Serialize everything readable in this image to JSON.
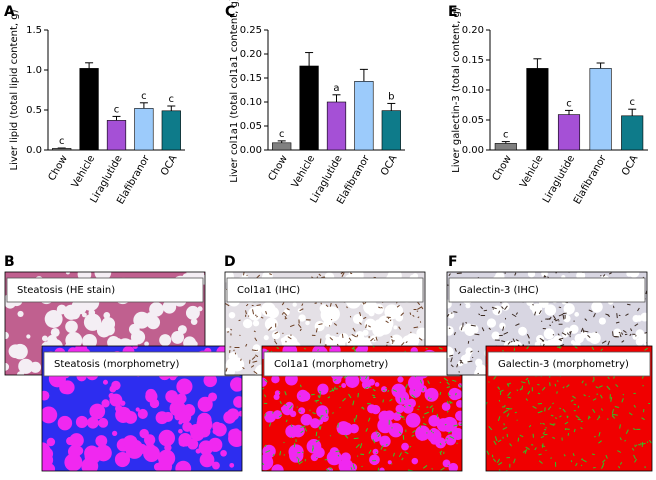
{
  "chart_data": [
    {
      "type": "bar",
      "panel": "A",
      "ylabel": "Liver lipid (total lipid content, g)",
      "categories": [
        "Chow",
        "Vehicle",
        "Liraglutide",
        "Elafibranor",
        "OCA"
      ],
      "values": [
        0.02,
        1.02,
        0.37,
        0.52,
        0.49
      ],
      "errors": [
        0.005,
        0.07,
        0.05,
        0.07,
        0.06
      ],
      "annotations": [
        "c",
        null,
        "c",
        "c",
        "c"
      ],
      "colors": [
        "#808080",
        "#000000",
        "#a550d6",
        "#9ccbfb",
        "#0e7b8a"
      ],
      "ylim": [
        0,
        1.5
      ],
      "yticks": [
        {
          "value": 0,
          "label": "0.0"
        },
        0.5,
        {
          "value": 1,
          "label": "1.0"
        },
        1.5
      ]
    },
    {
      "type": "bar",
      "panel": "C",
      "ylabel": "Liver col1a1 (total col1a1 content, g)",
      "categories": [
        "Chow",
        "Vehicle",
        "Liraglutide",
        "Elafibranor",
        "OCA"
      ],
      "values": [
        0.015,
        0.175,
        0.1,
        0.143,
        0.082
      ],
      "errors": [
        0.004,
        0.028,
        0.015,
        0.025,
        0.015
      ],
      "annotations": [
        "c",
        null,
        "a",
        null,
        "b"
      ],
      "colors": [
        "#808080",
        "#000000",
        "#a550d6",
        "#9ccbfb",
        "#0e7b8a"
      ],
      "ylim": [
        0,
        0.25
      ],
      "yticks": [
        {
          "value": 0,
          "label": "0.00"
        },
        0.05,
        {
          "value": 0.1,
          "label": "0.10"
        },
        0.15,
        {
          "value": 0.2,
          "label": "0.20"
        },
        0.25
      ]
    },
    {
      "type": "bar",
      "panel": "E",
      "ylabel": "Liver galectin-3 (total content, g)",
      "categories": [
        "Chow",
        "Vehicle",
        "Liraglutide",
        "Elafibranor",
        "OCA"
      ],
      "values": [
        0.011,
        0.136,
        0.059,
        0.136,
        0.057
      ],
      "errors": [
        0.003,
        0.016,
        0.007,
        0.009,
        0.011
      ],
      "annotations": [
        "c",
        null,
        "c",
        null,
        "c"
      ],
      "colors": [
        "#808080",
        "#000000",
        "#a550d6",
        "#9ccbfb",
        "#0e7b8a"
      ],
      "ylim": [
        0,
        0.2
      ],
      "yticks": [
        {
          "value": 0,
          "label": "0.00"
        },
        0.05,
        {
          "value": 0.1,
          "label": "0.10"
        },
        0.15,
        {
          "value": 0.2,
          "label": "0.20"
        }
      ]
    }
  ],
  "images": [
    {
      "panel": "B",
      "captions": [
        "Steatosis (HE stain)",
        "Steatosis (morphometry)"
      ]
    },
    {
      "panel": "D",
      "captions": [
        "Col1a1 (IHC)",
        "Col1a1 (morphometry)"
      ]
    },
    {
      "panel": "F",
      "captions": [
        "Galectin-3 (IHC)",
        "Galectin-3 (morphometry)"
      ]
    }
  ]
}
